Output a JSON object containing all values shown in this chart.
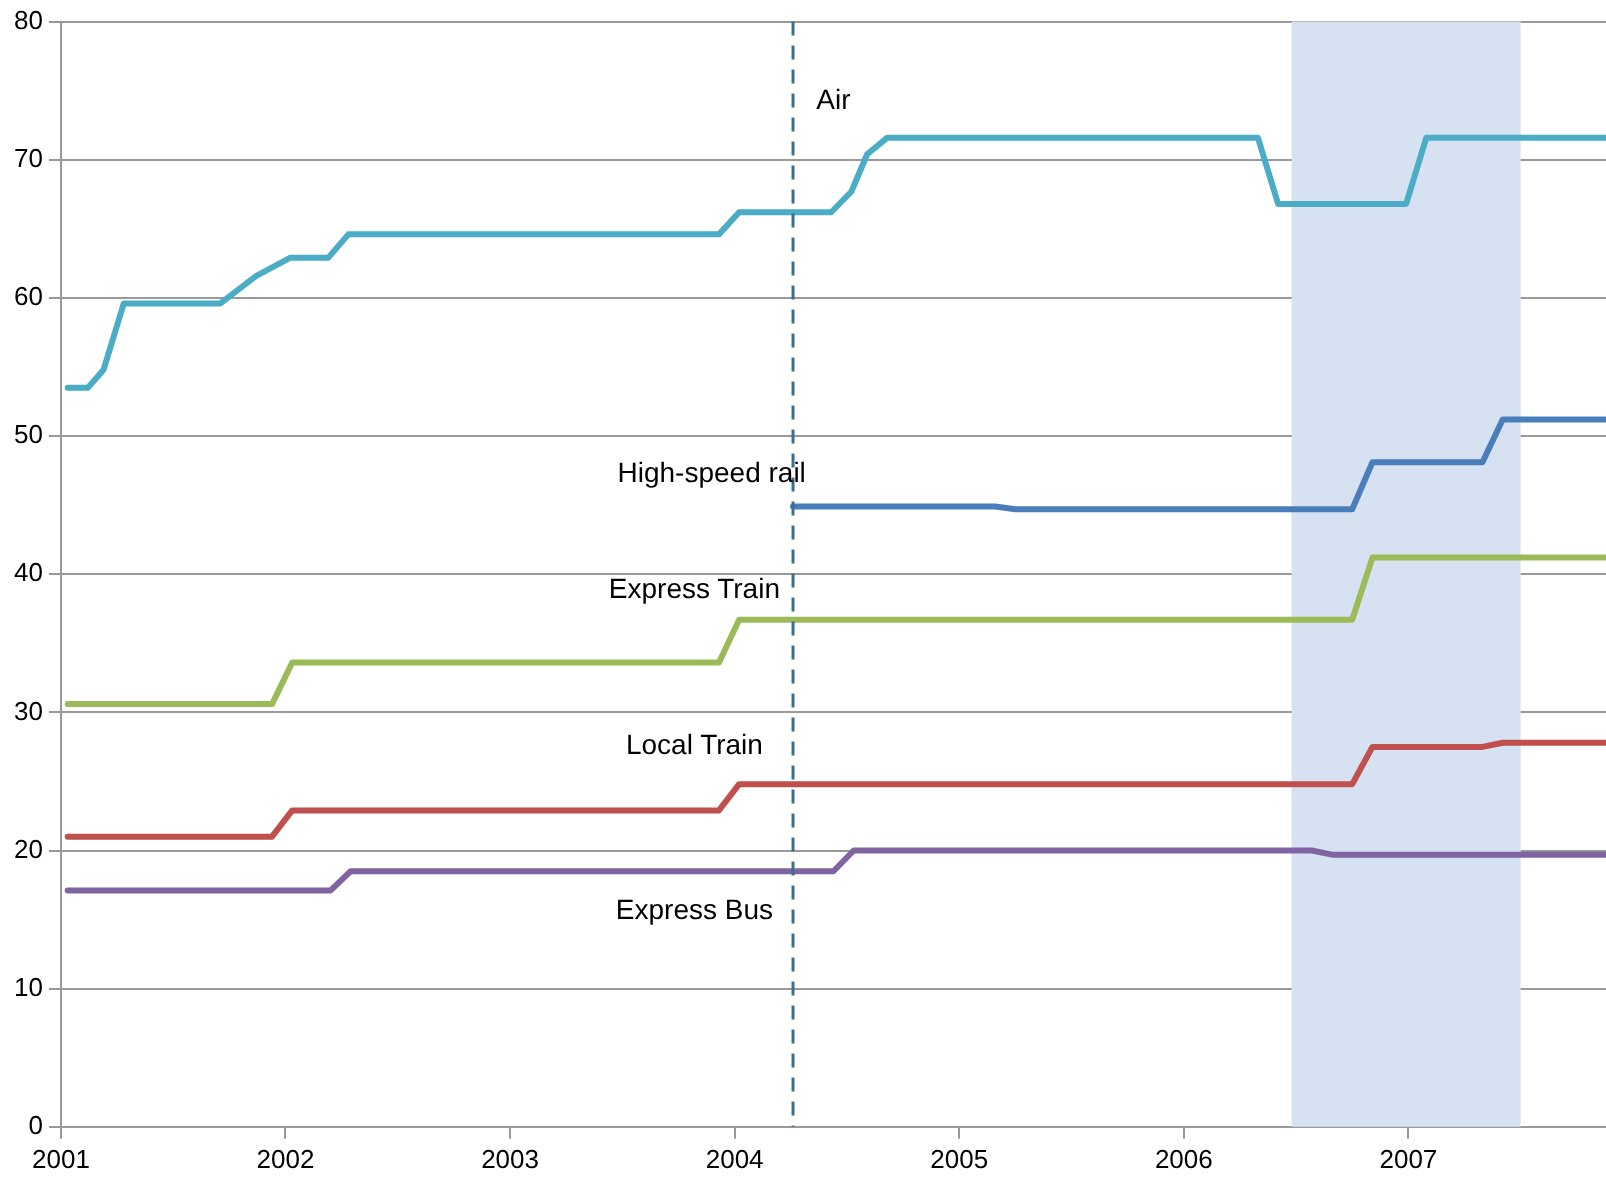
{
  "chart_data": {
    "type": "line",
    "xlim": [
      2001,
      2007.88
    ],
    "xticks": [
      2001,
      2002,
      2003,
      2004,
      2005,
      2006,
      2007
    ],
    "ylim": [
      0,
      80
    ],
    "yticks": [
      0,
      10,
      20,
      30,
      40,
      50,
      60,
      70,
      80
    ],
    "grid": "y",
    "legend": false,
    "marker": "none",
    "line_style": "solid",
    "series": [
      {
        "name": "Air",
        "color": "#4bacc6",
        "x": [
          2001.03,
          2001.12,
          2001.19,
          2001.28,
          2001.71,
          2001.87,
          2002.02,
          2002.19,
          2002.28,
          2003.93,
          2004.02,
          2004.43,
          2004.52,
          2004.59,
          2004.68,
          2006.33,
          2006.42,
          2006.99,
          2007.08,
          2007.88
        ],
        "values": [
          53.5,
          53.5,
          54.8,
          59.6,
          59.6,
          61.6,
          62.9,
          62.9,
          64.6,
          64.6,
          66.2,
          66.2,
          67.7,
          70.4,
          71.6,
          71.6,
          66.8,
          66.8,
          71.6,
          71.6
        ]
      },
      {
        "name": "High-speed rail",
        "color": "#4a7ebb",
        "x": [
          2004.26,
          2005.16,
          2005.25,
          2006.75,
          2006.84,
          2007.33,
          2007.42,
          2007.88
        ],
        "values": [
          44.9,
          44.9,
          44.7,
          44.7,
          48.1,
          48.1,
          51.2,
          51.2
        ]
      },
      {
        "name": "Express Train",
        "color": "#9bbb59",
        "x": [
          2001.03,
          2001.94,
          2002.03,
          2003.93,
          2004.02,
          2006.75,
          2006.84,
          2007.88
        ],
        "values": [
          30.6,
          30.6,
          33.6,
          33.6,
          36.7,
          36.7,
          41.2,
          41.2
        ]
      },
      {
        "name": "Local Train",
        "color": "#c0504d",
        "x": [
          2001.03,
          2001.94,
          2002.03,
          2003.93,
          2004.02,
          2006.75,
          2006.84,
          2007.33,
          2007.42,
          2007.88
        ],
        "values": [
          21.0,
          21.0,
          22.9,
          22.9,
          24.8,
          24.8,
          27.5,
          27.5,
          27.8,
          27.8
        ]
      },
      {
        "name": "Express Bus",
        "color": "#8064a2",
        "x": [
          2001.03,
          2002.2,
          2002.29,
          2004.44,
          2004.53,
          2006.57,
          2006.66,
          2007.88
        ],
        "values": [
          17.1,
          17.1,
          18.5,
          18.5,
          20.0,
          20.0,
          19.7,
          19.7
        ]
      }
    ],
    "ref_lines": [
      {
        "axis": "x",
        "value": 2004.26,
        "color": "#3a6f8f",
        "line_style": "dashed"
      }
    ],
    "bands": [
      {
        "axis": "x",
        "from": 2006.48,
        "to": 2007.5,
        "color": "#d6e2f2"
      }
    ]
  }
}
